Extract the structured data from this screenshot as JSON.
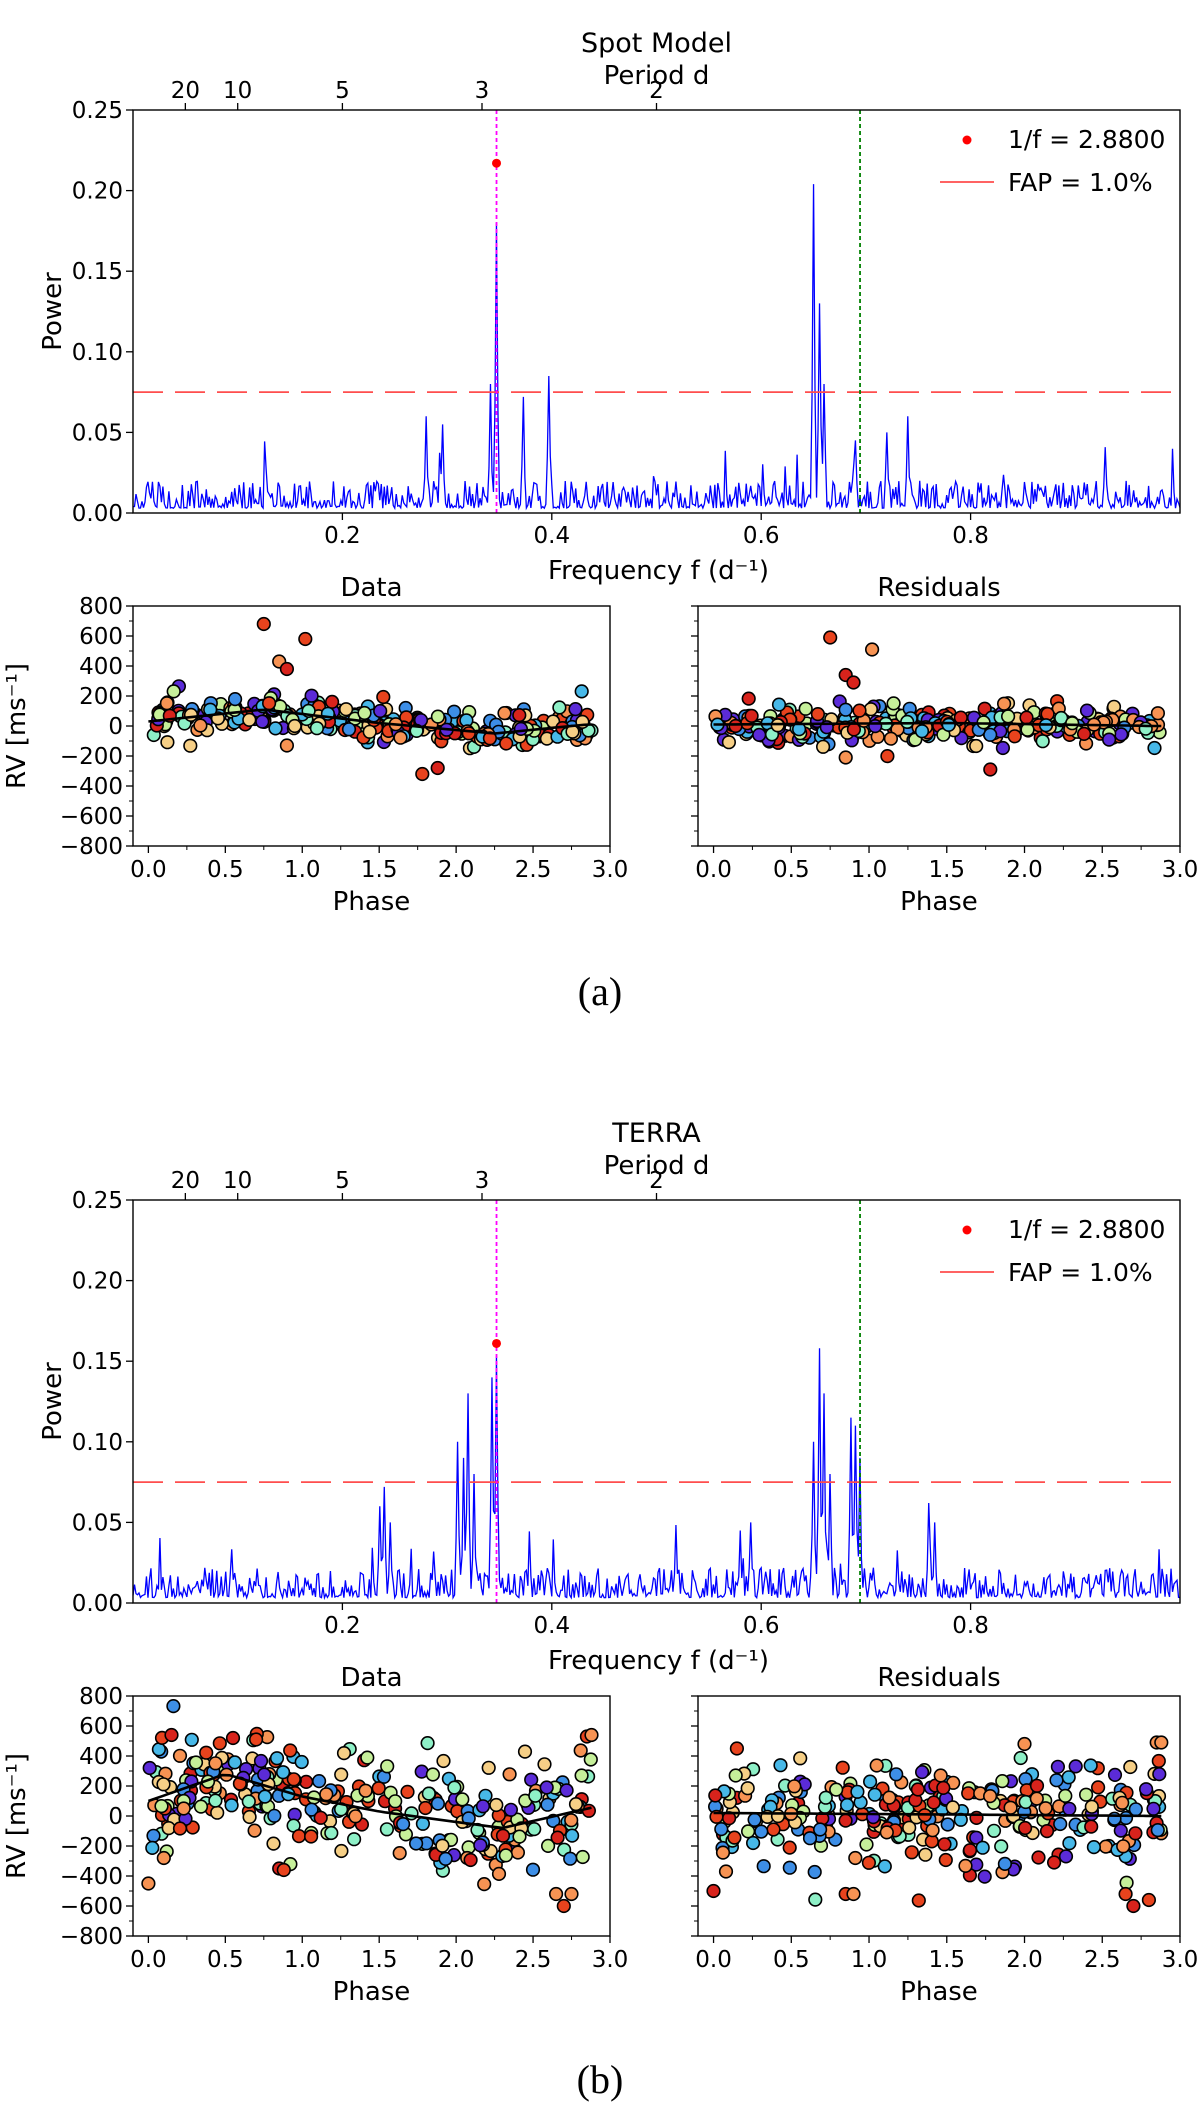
{
  "figure": {
    "colors": {
      "periodogram": "#0000ff",
      "fap_line": "#ff4d4d",
      "peak_marker": "#ff0000",
      "peak_vline": "#ff00ff",
      "harmonic_vline": "#008000",
      "fit_curve": "#000000",
      "palette": [
        "#5b2bd8",
        "#3d8ee6",
        "#47b8e8",
        "#8ef0c7",
        "#c6f09a",
        "#f6cf86",
        "#f79353",
        "#e8431d",
        "#d8231c"
      ]
    },
    "panels": [
      {
        "caption": "(a)",
        "periodogram": {
          "title": "Spot Model",
          "top_axis_label": "Period d",
          "top_ticks": [
            "20",
            "10",
            "5",
            "3",
            "2"
          ],
          "xlabel": "Frequency f (d⁻¹)",
          "ylabel": "Power",
          "xticks": [
            "0.2",
            "0.4",
            "0.6",
            "0.8"
          ],
          "yticks": [
            "0.00",
            "0.05",
            "0.10",
            "0.15",
            "0.20",
            "0.25"
          ],
          "legend": {
            "marker_label": "1/f = 2.8800",
            "line_label": "FAP = 1.0%"
          }
        },
        "rv": [
          {
            "title": "Data",
            "ylabel": "RV [ms⁻¹]",
            "xlabel": "Phase",
            "xticks": [
              "0.0",
              "0.5",
              "1.0",
              "1.5",
              "2.0",
              "2.5",
              "3.0"
            ],
            "yticks": [
              "800",
              "600",
              "400",
              "200",
              "0",
              "−200",
              "−400",
              "−600",
              "−800"
            ]
          },
          {
            "title": "Residuals",
            "xlabel": "Phase",
            "xticks": [
              "0.0",
              "0.5",
              "1.0",
              "1.5",
              "2.0",
              "2.5",
              "3.0"
            ]
          }
        ]
      },
      {
        "caption": "(b)",
        "periodogram": {
          "title": "TERRA",
          "top_axis_label": "Period d",
          "top_ticks": [
            "20",
            "10",
            "5",
            "3",
            "2"
          ],
          "xlabel": "Frequency f (d⁻¹)",
          "ylabel": "Power",
          "xticks": [
            "0.2",
            "0.4",
            "0.6",
            "0.8"
          ],
          "yticks": [
            "0.00",
            "0.05",
            "0.10",
            "0.15",
            "0.20",
            "0.25"
          ],
          "legend": {
            "marker_label": "1/f = 2.8800",
            "line_label": "FAP = 1.0%"
          }
        },
        "rv": [
          {
            "title": "Data",
            "ylabel": "RV [ms⁻¹]",
            "xlabel": "Phase",
            "xticks": [
              "0.0",
              "0.5",
              "1.0",
              "1.5",
              "2.0",
              "2.5",
              "3.0"
            ],
            "yticks": [
              "800",
              "600",
              "400",
              "200",
              "0",
              "−200",
              "−400",
              "−600",
              "−800"
            ]
          },
          {
            "title": "Residuals",
            "xlabel": "Phase",
            "xticks": [
              "0.0",
              "0.5",
              "1.0",
              "1.5",
              "2.0",
              "2.5",
              "3.0"
            ]
          }
        ]
      }
    ]
  },
  "chart_data": [
    {
      "type": "line",
      "title": "Spot Model",
      "xlabel": "Frequency f (d⁻¹)",
      "ylabel": "Power",
      "secondary_xlabel": "Period d",
      "xlim": [
        0.0,
        1.0
      ],
      "ylim": [
        0.0,
        0.25
      ],
      "grid": false,
      "legend_position": "top-right",
      "noise_level": 0.02,
      "peaks": [
        [
          0.347,
          0.18
        ],
        [
          0.342,
          0.08
        ],
        [
          0.397,
          0.085
        ],
        [
          0.373,
          0.072
        ],
        [
          0.65,
          0.204
        ],
        [
          0.655,
          0.13
        ],
        [
          0.66,
          0.08
        ],
        [
          0.28,
          0.06
        ],
        [
          0.295,
          0.055
        ],
        [
          0.69,
          0.045
        ],
        [
          0.72,
          0.05
        ],
        [
          0.74,
          0.06
        ]
      ],
      "best_peak": {
        "frequency": 0.3472,
        "power": 0.217,
        "period": 2.88
      },
      "fap_1pct_level": 0.075,
      "marker_frequencies": [
        0.3472,
        0.6944
      ]
    },
    {
      "type": "scatter",
      "title": "Data",
      "xlabel": "Phase",
      "ylabel": "RV [ms⁻¹]",
      "xlim": [
        -0.1,
        3.0
      ],
      "ylim": [
        -800,
        800
      ],
      "base": 40,
      "spread": 60,
      "points": 300,
      "seed": 11,
      "outliers": [
        [
          0.75,
          680
        ],
        [
          0.85,
          430
        ],
        [
          1.02,
          580
        ],
        [
          0.9,
          380
        ],
        [
          1.78,
          -320
        ],
        [
          1.88,
          -280
        ],
        [
          0.9,
          -130
        ]
      ],
      "trend": [
        [
          0.0,
          30
        ],
        [
          0.75,
          110
        ],
        [
          1.5,
          20
        ],
        [
          2.25,
          -50
        ],
        [
          2.85,
          10
        ]
      ]
    },
    {
      "type": "scatter",
      "title": "Residuals",
      "xlabel": "Phase",
      "xlim": [
        -0.1,
        3.0
      ],
      "ylim": [
        -800,
        800
      ],
      "base": 0,
      "spread": 60,
      "points": 300,
      "seed": 23,
      "outliers": [
        [
          0.75,
          590
        ],
        [
          0.85,
          340
        ],
        [
          1.02,
          510
        ],
        [
          0.9,
          290
        ],
        [
          1.78,
          -290
        ],
        [
          0.85,
          -210
        ]
      ],
      "trend": [
        [
          0.0,
          10
        ],
        [
          1.5,
          20
        ],
        [
          2.85,
          0
        ]
      ]
    },
    {
      "type": "line",
      "title": "TERRA",
      "xlabel": "Frequency f (d⁻¹)",
      "ylabel": "Power",
      "secondary_xlabel": "Period d",
      "xlim": [
        0.0,
        1.0
      ],
      "ylim": [
        0.0,
        0.25
      ],
      "grid": false,
      "legend_position": "top-right",
      "noise_level": 0.022,
      "peaks": [
        [
          0.347,
          0.153
        ],
        [
          0.343,
          0.14
        ],
        [
          0.32,
          0.13
        ],
        [
          0.31,
          0.1
        ],
        [
          0.315,
          0.09
        ],
        [
          0.325,
          0.08
        ],
        [
          0.24,
          0.072
        ],
        [
          0.235,
          0.06
        ],
        [
          0.245,
          0.05
        ],
        [
          0.655,
          0.158
        ],
        [
          0.66,
          0.13
        ],
        [
          0.65,
          0.1
        ],
        [
          0.665,
          0.08
        ],
        [
          0.685,
          0.115
        ],
        [
          0.69,
          0.11
        ],
        [
          0.695,
          0.09
        ],
        [
          0.76,
          0.062
        ],
        [
          0.765,
          0.05
        ],
        [
          0.58,
          0.045
        ],
        [
          0.59,
          0.05
        ]
      ],
      "best_peak": {
        "frequency": 0.3472,
        "power": 0.161,
        "period": 2.88
      },
      "fap_1pct_level": 0.075,
      "marker_frequencies": [
        0.3472,
        0.6944
      ]
    },
    {
      "type": "scatter",
      "title": "Data",
      "xlabel": "Phase",
      "ylabel": "RV [ms⁻¹]",
      "xlim": [
        -0.1,
        3.0
      ],
      "ylim": [
        -800,
        800
      ],
      "base": 30,
      "spread": 190,
      "points": 300,
      "seed": 37,
      "outliers": [
        [
          0.0,
          -450
        ],
        [
          0.1,
          -280
        ],
        [
          0.85,
          -350
        ],
        [
          0.88,
          -360
        ],
        [
          2.65,
          -520
        ],
        [
          2.7,
          -600
        ],
        [
          2.75,
          -520
        ],
        [
          2.85,
          530
        ],
        [
          2.88,
          540
        ],
        [
          0.15,
          540
        ],
        [
          0.55,
          520
        ],
        [
          0.7,
          510
        ]
      ],
      "trend": [
        [
          0.0,
          100
        ],
        [
          0.5,
          280
        ],
        [
          1.0,
          130
        ],
        [
          1.5,
          30
        ],
        [
          2.0,
          -40
        ],
        [
          2.3,
          -80
        ],
        [
          2.9,
          60
        ]
      ]
    },
    {
      "type": "scatter",
      "title": "Residuals",
      "xlabel": "Phase",
      "xlim": [
        -0.1,
        3.0
      ],
      "ylim": [
        -800,
        800
      ],
      "base": 20,
      "spread": 180,
      "points": 300,
      "seed": 51,
      "outliers": [
        [
          0.0,
          -500
        ],
        [
          0.08,
          -370
        ],
        [
          0.85,
          -520
        ],
        [
          0.9,
          -520
        ],
        [
          2.65,
          -520
        ],
        [
          2.7,
          -600
        ],
        [
          2.8,
          -560
        ],
        [
          2.85,
          490
        ],
        [
          2.88,
          490
        ],
        [
          0.15,
          450
        ],
        [
          2.0,
          480
        ]
      ],
      "trend": [
        [
          0.0,
          20
        ],
        [
          1.5,
          10
        ],
        [
          2.9,
          0
        ]
      ]
    }
  ]
}
